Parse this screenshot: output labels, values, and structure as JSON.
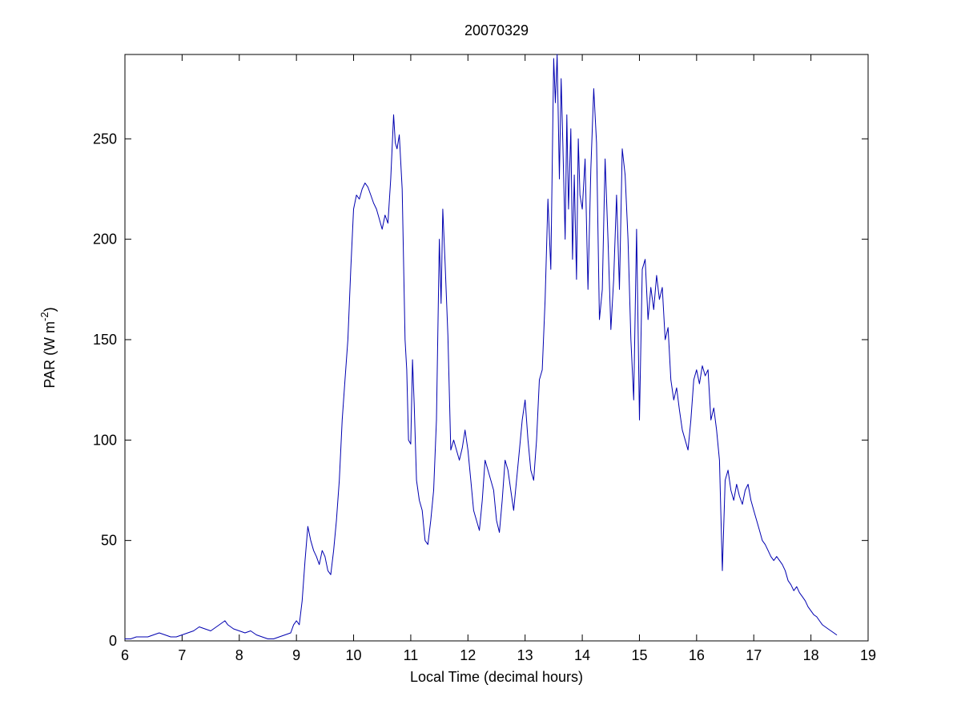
{
  "figure": {
    "title": "20070329",
    "xlabel": "Local Time (decimal hours)",
    "ylabel_pre": "PAR (W m",
    "ylabel_sup": "-2",
    "ylabel_post": ")"
  },
  "chart_data": {
    "type": "line",
    "title": "20070329",
    "xlabel": "Local Time (decimal hours)",
    "ylabel": "PAR (W m^-2)",
    "xlim": [
      6,
      19
    ],
    "ylim": [
      0,
      292
    ],
    "xticks": [
      6,
      7,
      8,
      9,
      10,
      11,
      12,
      13,
      14,
      15,
      16,
      17,
      18,
      19
    ],
    "yticks": [
      0,
      50,
      100,
      150,
      200,
      250
    ],
    "grid": false,
    "legend": "none",
    "line_color": "#0000b0",
    "axis_color": "#000000",
    "series": [
      {
        "name": "PAR",
        "points": [
          [
            6.0,
            1
          ],
          [
            6.1,
            1
          ],
          [
            6.2,
            2
          ],
          [
            6.3,
            2
          ],
          [
            6.4,
            2
          ],
          [
            6.5,
            3
          ],
          [
            6.6,
            4
          ],
          [
            6.7,
            3
          ],
          [
            6.8,
            2
          ],
          [
            6.9,
            2
          ],
          [
            7.0,
            3
          ],
          [
            7.1,
            4
          ],
          [
            7.2,
            5
          ],
          [
            7.3,
            7
          ],
          [
            7.4,
            6
          ],
          [
            7.5,
            5
          ],
          [
            7.6,
            7
          ],
          [
            7.7,
            9
          ],
          [
            7.75,
            10
          ],
          [
            7.8,
            8
          ],
          [
            7.9,
            6
          ],
          [
            8.0,
            5
          ],
          [
            8.1,
            4
          ],
          [
            8.2,
            5
          ],
          [
            8.3,
            3
          ],
          [
            8.4,
            2
          ],
          [
            8.5,
            1
          ],
          [
            8.6,
            1
          ],
          [
            8.7,
            2
          ],
          [
            8.8,
            3
          ],
          [
            8.9,
            4
          ],
          [
            8.95,
            8
          ],
          [
            9.0,
            10
          ],
          [
            9.05,
            8
          ],
          [
            9.1,
            20
          ],
          [
            9.15,
            40
          ],
          [
            9.2,
            57
          ],
          [
            9.25,
            50
          ],
          [
            9.3,
            45
          ],
          [
            9.35,
            42
          ],
          [
            9.4,
            38
          ],
          [
            9.45,
            45
          ],
          [
            9.5,
            42
          ],
          [
            9.55,
            35
          ],
          [
            9.6,
            33
          ],
          [
            9.65,
            45
          ],
          [
            9.7,
            60
          ],
          [
            9.75,
            80
          ],
          [
            9.8,
            110
          ],
          [
            9.85,
            130
          ],
          [
            9.9,
            150
          ],
          [
            9.95,
            185
          ],
          [
            10.0,
            215
          ],
          [
            10.05,
            222
          ],
          [
            10.1,
            220
          ],
          [
            10.15,
            225
          ],
          [
            10.2,
            228
          ],
          [
            10.25,
            226
          ],
          [
            10.3,
            222
          ],
          [
            10.35,
            218
          ],
          [
            10.4,
            215
          ],
          [
            10.45,
            210
          ],
          [
            10.5,
            205
          ],
          [
            10.55,
            212
          ],
          [
            10.6,
            208
          ],
          [
            10.65,
            230
          ],
          [
            10.7,
            262
          ],
          [
            10.73,
            248
          ],
          [
            10.76,
            245
          ],
          [
            10.8,
            252
          ],
          [
            10.85,
            225
          ],
          [
            10.9,
            150
          ],
          [
            10.93,
            135
          ],
          [
            10.96,
            100
          ],
          [
            11.0,
            98
          ],
          [
            11.03,
            140
          ],
          [
            11.06,
            118
          ],
          [
            11.1,
            80
          ],
          [
            11.15,
            70
          ],
          [
            11.2,
            65
          ],
          [
            11.25,
            50
          ],
          [
            11.3,
            48
          ],
          [
            11.35,
            60
          ],
          [
            11.4,
            75
          ],
          [
            11.45,
            110
          ],
          [
            11.5,
            200
          ],
          [
            11.53,
            168
          ],
          [
            11.56,
            215
          ],
          [
            11.6,
            188
          ],
          [
            11.65,
            152
          ],
          [
            11.7,
            95
          ],
          [
            11.75,
            100
          ],
          [
            11.8,
            95
          ],
          [
            11.85,
            90
          ],
          [
            11.9,
            96
          ],
          [
            11.95,
            105
          ],
          [
            12.0,
            95
          ],
          [
            12.05,
            80
          ],
          [
            12.1,
            65
          ],
          [
            12.15,
            60
          ],
          [
            12.2,
            55
          ],
          [
            12.25,
            70
          ],
          [
            12.3,
            90
          ],
          [
            12.35,
            85
          ],
          [
            12.4,
            80
          ],
          [
            12.45,
            75
          ],
          [
            12.5,
            60
          ],
          [
            12.55,
            54
          ],
          [
            12.6,
            70
          ],
          [
            12.65,
            90
          ],
          [
            12.7,
            85
          ],
          [
            12.75,
            75
          ],
          [
            12.8,
            65
          ],
          [
            12.85,
            80
          ],
          [
            12.9,
            95
          ],
          [
            12.95,
            110
          ],
          [
            13.0,
            120
          ],
          [
            13.05,
            100
          ],
          [
            13.1,
            85
          ],
          [
            13.15,
            80
          ],
          [
            13.2,
            100
          ],
          [
            13.25,
            130
          ],
          [
            13.3,
            135
          ],
          [
            13.35,
            170
          ],
          [
            13.4,
            220
          ],
          [
            13.45,
            185
          ],
          [
            13.5,
            290
          ],
          [
            13.53,
            268
          ],
          [
            13.56,
            292
          ],
          [
            13.6,
            230
          ],
          [
            13.63,
            280
          ],
          [
            13.66,
            248
          ],
          [
            13.7,
            200
          ],
          [
            13.73,
            262
          ],
          [
            13.76,
            215
          ],
          [
            13.8,
            255
          ],
          [
            13.83,
            190
          ],
          [
            13.86,
            232
          ],
          [
            13.9,
            180
          ],
          [
            13.93,
            250
          ],
          [
            13.96,
            222
          ],
          [
            14.0,
            215
          ],
          [
            14.05,
            240
          ],
          [
            14.1,
            175
          ],
          [
            14.15,
            235
          ],
          [
            14.2,
            275
          ],
          [
            14.25,
            248
          ],
          [
            14.3,
            160
          ],
          [
            14.35,
            175
          ],
          [
            14.4,
            240
          ],
          [
            14.45,
            200
          ],
          [
            14.5,
            155
          ],
          [
            14.55,
            180
          ],
          [
            14.6,
            222
          ],
          [
            14.65,
            175
          ],
          [
            14.7,
            245
          ],
          [
            14.75,
            232
          ],
          [
            14.8,
            200
          ],
          [
            14.85,
            150
          ],
          [
            14.9,
            120
          ],
          [
            14.95,
            205
          ],
          [
            15.0,
            110
          ],
          [
            15.05,
            185
          ],
          [
            15.1,
            190
          ],
          [
            15.15,
            160
          ],
          [
            15.2,
            176
          ],
          [
            15.25,
            165
          ],
          [
            15.3,
            182
          ],
          [
            15.35,
            170
          ],
          [
            15.4,
            176
          ],
          [
            15.45,
            150
          ],
          [
            15.5,
            156
          ],
          [
            15.55,
            130
          ],
          [
            15.6,
            120
          ],
          [
            15.65,
            126
          ],
          [
            15.7,
            115
          ],
          [
            15.75,
            105
          ],
          [
            15.8,
            100
          ],
          [
            15.85,
            95
          ],
          [
            15.9,
            110
          ],
          [
            15.95,
            130
          ],
          [
            16.0,
            135
          ],
          [
            16.05,
            128
          ],
          [
            16.1,
            137
          ],
          [
            16.15,
            132
          ],
          [
            16.2,
            135
          ],
          [
            16.25,
            110
          ],
          [
            16.3,
            116
          ],
          [
            16.35,
            105
          ],
          [
            16.4,
            90
          ],
          [
            16.45,
            35
          ],
          [
            16.5,
            80
          ],
          [
            16.55,
            85
          ],
          [
            16.6,
            75
          ],
          [
            16.65,
            70
          ],
          [
            16.7,
            78
          ],
          [
            16.75,
            72
          ],
          [
            16.8,
            68
          ],
          [
            16.85,
            75
          ],
          [
            16.9,
            78
          ],
          [
            16.95,
            70
          ],
          [
            17.0,
            65
          ],
          [
            17.05,
            60
          ],
          [
            17.1,
            55
          ],
          [
            17.15,
            50
          ],
          [
            17.2,
            48
          ],
          [
            17.25,
            45
          ],
          [
            17.3,
            42
          ],
          [
            17.35,
            40
          ],
          [
            17.4,
            42
          ],
          [
            17.45,
            40
          ],
          [
            17.5,
            38
          ],
          [
            17.55,
            35
          ],
          [
            17.6,
            30
          ],
          [
            17.65,
            28
          ],
          [
            17.7,
            25
          ],
          [
            17.75,
            27
          ],
          [
            17.8,
            24
          ],
          [
            17.85,
            22
          ],
          [
            17.9,
            20
          ],
          [
            17.95,
            17
          ],
          [
            18.0,
            15
          ],
          [
            18.05,
            13
          ],
          [
            18.1,
            12
          ],
          [
            18.15,
            10
          ],
          [
            18.2,
            8
          ],
          [
            18.25,
            7
          ],
          [
            18.3,
            6
          ],
          [
            18.35,
            5
          ],
          [
            18.4,
            4
          ],
          [
            18.45,
            3
          ]
        ]
      }
    ]
  }
}
